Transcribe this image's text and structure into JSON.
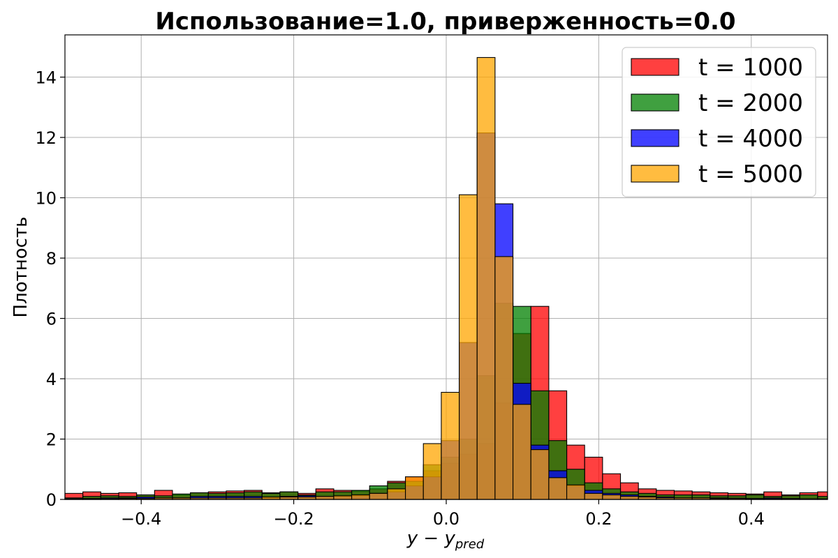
{
  "chart_data": {
    "type": "bar",
    "title": "Использование=1.0, приверженность=0.0",
    "xlabel": "y − y",
    "xlabel_sub": "pred",
    "ylabel": "Плотность",
    "xlim": [
      -0.5,
      0.5
    ],
    "ylim": [
      0,
      15.4
    ],
    "x_ticks": [
      -0.4,
      -0.2,
      0.0,
      0.2,
      0.4
    ],
    "x_tick_labels": [
      "−0.4",
      "−0.2",
      "0.0",
      "0.2",
      "0.4"
    ],
    "y_ticks": [
      0,
      2,
      4,
      6,
      8,
      10,
      12,
      14
    ],
    "y_tick_labels": [
      "0",
      "2",
      "4",
      "6",
      "8",
      "10",
      "12",
      "14"
    ],
    "grid": true,
    "legend_position": "top-right",
    "series": [
      {
        "name": "t = 1000",
        "color": "#ff0000",
        "bin_width": 0.0235,
        "x_start": -0.5,
        "values": [
          0.2,
          0.25,
          0.2,
          0.22,
          0.15,
          0.3,
          0.15,
          0.22,
          0.25,
          0.28,
          0.3,
          0.22,
          0.25,
          0.2,
          0.35,
          0.3,
          0.28,
          0.35,
          0.6,
          0.75,
          0.95,
          1.2,
          1.5,
          1.85,
          3.2,
          5.5,
          6.4,
          3.6,
          1.8,
          1.4,
          0.85,
          0.55,
          0.35,
          0.3,
          0.28,
          0.25,
          0.22,
          0.2,
          0.18,
          0.25,
          0.15,
          0.22,
          0.25,
          0.28,
          0.18,
          0.22,
          0.2,
          0.25
        ]
      },
      {
        "name": "t = 2000",
        "color": "#008000",
        "bin_width": 0.0235,
        "x_start": -0.5,
        "values": [
          0.05,
          0.1,
          0.12,
          0.1,
          0.15,
          0.12,
          0.18,
          0.22,
          0.2,
          0.22,
          0.25,
          0.2,
          0.25,
          0.15,
          0.25,
          0.25,
          0.3,
          0.45,
          0.55,
          0.6,
          1.15,
          1.4,
          2.0,
          4.1,
          6.5,
          6.4,
          3.6,
          1.95,
          1.0,
          0.55,
          0.35,
          0.25,
          0.2,
          0.15,
          0.15,
          0.15,
          0.12,
          0.12,
          0.15,
          0.1,
          0.12,
          0.15,
          0.1,
          0.12,
          0.1,
          0.08,
          0.1
        ]
      },
      {
        "name": "t = 4000",
        "color": "#0000ff",
        "bin_width": 0.0235,
        "x_start": -0.5,
        "values": [
          0.02,
          0.03,
          0.05,
          0.05,
          0.08,
          0.05,
          0.05,
          0.1,
          0.1,
          0.1,
          0.1,
          0.05,
          0.1,
          0.12,
          0.1,
          0.1,
          0.12,
          0.2,
          0.25,
          0.45,
          0.75,
          1.95,
          5.2,
          12.15,
          9.8,
          3.85,
          1.8,
          0.95,
          0.45,
          0.3,
          0.2,
          0.15,
          0.1,
          0.08,
          0.05,
          0.05,
          0.05,
          0.04,
          0.03,
          0.05,
          0.03,
          0.02,
          0.02
        ]
      },
      {
        "name": "t = 5000",
        "color": "#ffa500",
        "bin_width": 0.0235,
        "x_start": -0.5,
        "values": [
          0.01,
          0.02,
          0.02,
          0.03,
          0.03,
          0.05,
          0.05,
          0.05,
          0.05,
          0.05,
          0.05,
          0.08,
          0.08,
          0.08,
          0.1,
          0.12,
          0.15,
          0.2,
          0.35,
          0.75,
          1.85,
          3.55,
          10.1,
          14.65,
          8.05,
          3.15,
          1.65,
          0.72,
          0.48,
          0.2,
          0.15,
          0.1,
          0.08,
          0.05,
          0.05,
          0.05,
          0.03,
          0.03,
          0.02,
          0.02,
          0.02
        ]
      }
    ]
  }
}
